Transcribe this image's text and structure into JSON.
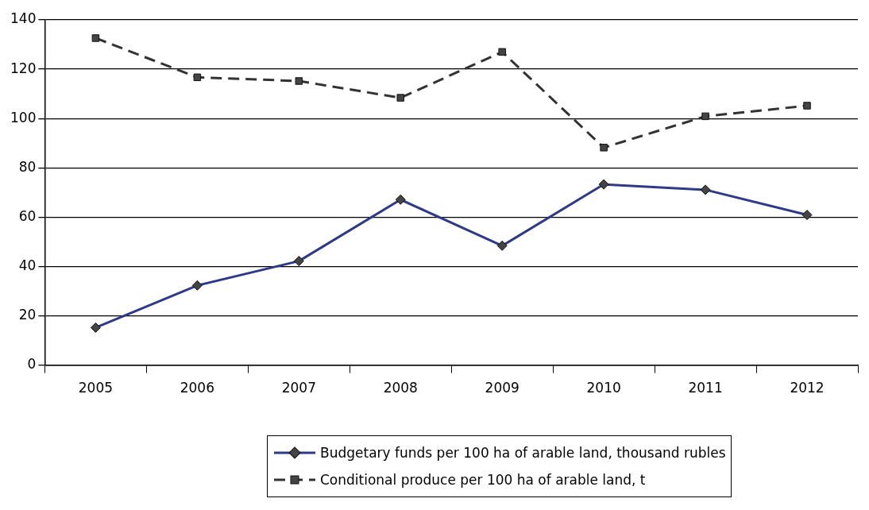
{
  "chart_data": {
    "type": "line",
    "categories": [
      "2005",
      "2006",
      "2007",
      "2008",
      "2009",
      "2010",
      "2011",
      "2012"
    ],
    "ylim": [
      0,
      140
    ],
    "yticks": [
      0,
      20,
      40,
      60,
      80,
      100,
      120,
      140
    ],
    "grid": "y",
    "legend": "bottom",
    "series": [
      {
        "name": "Budgetary funds per 100 ha of arable land, thousand rubles",
        "color": "#2e3a87",
        "marker": "diamond",
        "line_style": "solid",
        "values": [
          15.2,
          32.3,
          42.2,
          67.1,
          48.4,
          73.3,
          71.1,
          60.9
        ]
      },
      {
        "name": "Conditional produce per 100 ha of arable land, t",
        "color": "#333333",
        "marker": "square",
        "line_style": "dashed",
        "values": [
          132.6,
          116.7,
          115.2,
          108.4,
          127,
          88.2,
          100.9,
          105.2
        ]
      }
    ]
  }
}
